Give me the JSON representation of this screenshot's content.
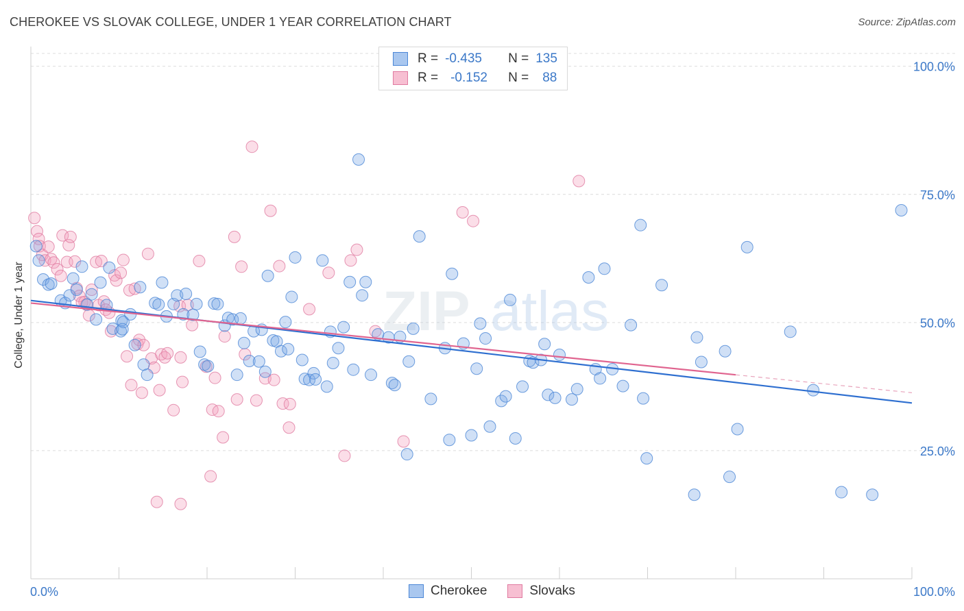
{
  "title": "CHEROKEE VS SLOVAK COLLEGE, UNDER 1 YEAR CORRELATION CHART",
  "source": "Source: ZipAtlas.com",
  "legend": {
    "r_label": "R =",
    "n_label": "N =",
    "rows": [
      {
        "r": "-0.435",
        "n": "135",
        "color": "#a9c7ef",
        "border": "#4a86d6"
      },
      {
        "r": "-0.152",
        "n": "88",
        "color": "#f7bfd2",
        "border": "#e07aa0"
      }
    ]
  },
  "bottom_legend": [
    "Cherokee",
    "Slovaks"
  ],
  "watermark": {
    "a": "ZIP",
    "b": "atlas"
  },
  "chart_data": {
    "type": "scatter",
    "xlabel": "",
    "ylabel": "College, Under 1 year",
    "x_tick_labels": [
      "0.0%",
      "100.0%"
    ],
    "y_tick_labels": [
      "100.0%",
      "75.0%",
      "50.0%",
      "25.0%"
    ],
    "y_ticks": [
      100,
      75,
      50,
      25
    ],
    "xlim": [
      0,
      100
    ],
    "ylim": [
      0,
      102.5
    ],
    "grid": true,
    "series": [
      {
        "name": "Cherokee",
        "color": "#4a86d6",
        "fill": "rgba(120,166,228,0.35)",
        "trend": {
          "x0": 0,
          "y0": 54.3,
          "x1": 100,
          "y1": 34.3
        },
        "points": [
          [
            0.6,
            64.9
          ],
          [
            0.9,
            62.1
          ],
          [
            1.4,
            58.4
          ],
          [
            2.0,
            57.4
          ],
          [
            2.3,
            57.6
          ],
          [
            3.4,
            54.3
          ],
          [
            3.9,
            53.8
          ],
          [
            4.4,
            55.3
          ],
          [
            4.8,
            58.6
          ],
          [
            5.2,
            56.4
          ],
          [
            5.8,
            60.9
          ],
          [
            6.4,
            53.5
          ],
          [
            6.9,
            55.5
          ],
          [
            7.4,
            50.6
          ],
          [
            7.9,
            57.8
          ],
          [
            8.6,
            53.4
          ],
          [
            8.9,
            60.7
          ],
          [
            9.3,
            48.8
          ],
          [
            10.2,
            48.3
          ],
          [
            10.3,
            50.4
          ],
          [
            10.5,
            50.1
          ],
          [
            11.3,
            51.6
          ],
          [
            11.8,
            45.6
          ],
          [
            12.4,
            56.9
          ],
          [
            12.8,
            41.8
          ],
          [
            13.2,
            39.8
          ],
          [
            14.1,
            53.8
          ],
          [
            14.5,
            53.5
          ],
          [
            14.9,
            57.8
          ],
          [
            15.4,
            51.2
          ],
          [
            16.2,
            53.6
          ],
          [
            16.6,
            55.3
          ],
          [
            17.3,
            51.6
          ],
          [
            17.6,
            55.6
          ],
          [
            18.4,
            51.5
          ],
          [
            18.8,
            53.6
          ],
          [
            19.2,
            44.3
          ],
          [
            19.7,
            41.8
          ],
          [
            20.1,
            41.5
          ],
          [
            20.8,
            53.7
          ],
          [
            21.2,
            53.6
          ],
          [
            22.0,
            49.4
          ],
          [
            22.4,
            50.9
          ],
          [
            22.9,
            50.6
          ],
          [
            23.4,
            39.8
          ],
          [
            23.8,
            50.8
          ],
          [
            24.2,
            46.0
          ],
          [
            24.8,
            42.5
          ],
          [
            25.3,
            48.3
          ],
          [
            25.9,
            42.4
          ],
          [
            26.2,
            48.6
          ],
          [
            26.6,
            40.4
          ],
          [
            26.9,
            59.1
          ],
          [
            27.5,
            46.5
          ],
          [
            27.9,
            46.3
          ],
          [
            28.4,
            44.4
          ],
          [
            28.9,
            50.1
          ],
          [
            29.2,
            44.8
          ],
          [
            29.6,
            55.0
          ],
          [
            30.0,
            62.7
          ],
          [
            30.8,
            42.7
          ],
          [
            31.1,
            39.0
          ],
          [
            31.6,
            38.8
          ],
          [
            32.1,
            40.1
          ],
          [
            32.3,
            38.9
          ],
          [
            33.1,
            62.1
          ],
          [
            33.6,
            37.5
          ],
          [
            34.0,
            48.2
          ],
          [
            34.3,
            42.1
          ],
          [
            34.9,
            45.0
          ],
          [
            35.5,
            49.1
          ],
          [
            36.2,
            57.9
          ],
          [
            36.6,
            40.8
          ],
          [
            37.2,
            81.8
          ],
          [
            37.6,
            55.3
          ],
          [
            38.0,
            57.9
          ],
          [
            38.6,
            39.8
          ],
          [
            39.4,
            47.7
          ],
          [
            40.6,
            47.1
          ],
          [
            41.0,
            38.2
          ],
          [
            41.3,
            37.8
          ],
          [
            41.9,
            47.2
          ],
          [
            42.7,
            24.3
          ],
          [
            42.9,
            42.4
          ],
          [
            43.4,
            48.8
          ],
          [
            44.1,
            66.8
          ],
          [
            45.4,
            35.1
          ],
          [
            47.0,
            45.0
          ],
          [
            47.5,
            27.1
          ],
          [
            47.8,
            59.5
          ],
          [
            49.1,
            45.9
          ],
          [
            50.0,
            28.0
          ],
          [
            50.6,
            41.0
          ],
          [
            51.0,
            49.8
          ],
          [
            51.6,
            46.9
          ],
          [
            52.1,
            29.7
          ],
          [
            53.4,
            34.7
          ],
          [
            53.9,
            35.6
          ],
          [
            54.4,
            54.4
          ],
          [
            55.0,
            27.4
          ],
          [
            55.8,
            37.5
          ],
          [
            56.6,
            42.5
          ],
          [
            57.0,
            42.2
          ],
          [
            57.9,
            42.7
          ],
          [
            58.3,
            45.8
          ],
          [
            58.7,
            35.9
          ],
          [
            59.5,
            35.3
          ],
          [
            60.0,
            43.7
          ],
          [
            61.4,
            35.0
          ],
          [
            62.0,
            37.0
          ],
          [
            63.3,
            58.8
          ],
          [
            64.1,
            40.9
          ],
          [
            64.6,
            39.1
          ],
          [
            65.1,
            60.5
          ],
          [
            66.0,
            40.9
          ],
          [
            67.2,
            37.6
          ],
          [
            68.1,
            49.5
          ],
          [
            69.2,
            69.0
          ],
          [
            69.5,
            35.2
          ],
          [
            69.9,
            23.5
          ],
          [
            71.6,
            57.3
          ],
          [
            75.3,
            16.4
          ],
          [
            75.6,
            47.1
          ],
          [
            76.1,
            42.3
          ],
          [
            78.8,
            44.4
          ],
          [
            79.3,
            19.9
          ],
          [
            80.2,
            29.2
          ],
          [
            81.3,
            64.7
          ],
          [
            86.2,
            48.2
          ],
          [
            88.8,
            36.8
          ],
          [
            92.0,
            16.9
          ],
          [
            95.5,
            16.4
          ],
          [
            98.8,
            71.9
          ],
          [
            10.4,
            48.7
          ]
        ]
      },
      {
        "name": "Slovaks",
        "color": "#e07aa0",
        "fill": "rgba(244,160,190,0.35)",
        "trend": {
          "x0": 0,
          "y0": 53.8,
          "x1": 80,
          "y1": 39.8,
          "dash_to_x": 100,
          "dash_to_y": 36.3
        },
        "points": [
          [
            0.4,
            70.4
          ],
          [
            0.7,
            67.8
          ],
          [
            0.9,
            66.3
          ],
          [
            1.0,
            64.9
          ],
          [
            1.3,
            63.2
          ],
          [
            1.6,
            62.1
          ],
          [
            2.0,
            64.8
          ],
          [
            2.3,
            62.4
          ],
          [
            2.6,
            61.7
          ],
          [
            3.0,
            60.4
          ],
          [
            3.4,
            59.1
          ],
          [
            3.6,
            67.0
          ],
          [
            4.1,
            61.8
          ],
          [
            4.3,
            65.1
          ],
          [
            4.5,
            66.7
          ],
          [
            5.0,
            61.9
          ],
          [
            5.2,
            56.7
          ],
          [
            5.5,
            55.2
          ],
          [
            5.8,
            53.9
          ],
          [
            6.1,
            54.0
          ],
          [
            6.3,
            53.5
          ],
          [
            6.6,
            51.4
          ],
          [
            6.9,
            56.4
          ],
          [
            7.4,
            61.8
          ],
          [
            7.7,
            53.4
          ],
          [
            8.0,
            62.0
          ],
          [
            8.3,
            54.1
          ],
          [
            8.5,
            52.5
          ],
          [
            8.9,
            51.9
          ],
          [
            9.1,
            48.3
          ],
          [
            9.5,
            59.2
          ],
          [
            9.7,
            58.2
          ],
          [
            10.2,
            59.7
          ],
          [
            10.5,
            62.2
          ],
          [
            10.9,
            43.4
          ],
          [
            11.2,
            56.3
          ],
          [
            11.4,
            37.8
          ],
          [
            11.8,
            56.6
          ],
          [
            12.1,
            45.8
          ],
          [
            12.3,
            46.6
          ],
          [
            12.6,
            36.3
          ],
          [
            12.8,
            45.6
          ],
          [
            13.3,
            63.4
          ],
          [
            13.7,
            43.0
          ],
          [
            14.0,
            41.2
          ],
          [
            14.3,
            15.0
          ],
          [
            14.6,
            36.8
          ],
          [
            14.8,
            43.8
          ],
          [
            15.2,
            43.2
          ],
          [
            15.5,
            44.0
          ],
          [
            16.2,
            32.9
          ],
          [
            16.9,
            53.2
          ],
          [
            17.0,
            43.2
          ],
          [
            17.2,
            38.4
          ],
          [
            17.8,
            53.4
          ],
          [
            18.3,
            49.5
          ],
          [
            19.1,
            62.0
          ],
          [
            19.9,
            41.4
          ],
          [
            20.4,
            20.0
          ],
          [
            20.6,
            33.0
          ],
          [
            20.9,
            39.2
          ],
          [
            21.3,
            32.7
          ],
          [
            21.8,
            27.6
          ],
          [
            22.0,
            47.3
          ],
          [
            23.1,
            66.7
          ],
          [
            23.4,
            35.0
          ],
          [
            23.9,
            60.9
          ],
          [
            24.3,
            43.8
          ],
          [
            25.1,
            84.3
          ],
          [
            25.6,
            34.8
          ],
          [
            26.6,
            39.1
          ],
          [
            27.2,
            71.8
          ],
          [
            27.6,
            38.8
          ],
          [
            28.2,
            61.0
          ],
          [
            28.6,
            34.2
          ],
          [
            29.3,
            29.5
          ],
          [
            31.6,
            52.6
          ],
          [
            33.8,
            59.7
          ],
          [
            35.6,
            24.0
          ],
          [
            36.3,
            62.1
          ],
          [
            37.0,
            64.2
          ],
          [
            39.1,
            48.3
          ],
          [
            42.3,
            26.8
          ],
          [
            49.0,
            71.5
          ],
          [
            50.2,
            69.8
          ],
          [
            62.2,
            77.6
          ],
          [
            29.4,
            34.1
          ],
          [
            17.0,
            14.6
          ]
        ]
      }
    ]
  }
}
